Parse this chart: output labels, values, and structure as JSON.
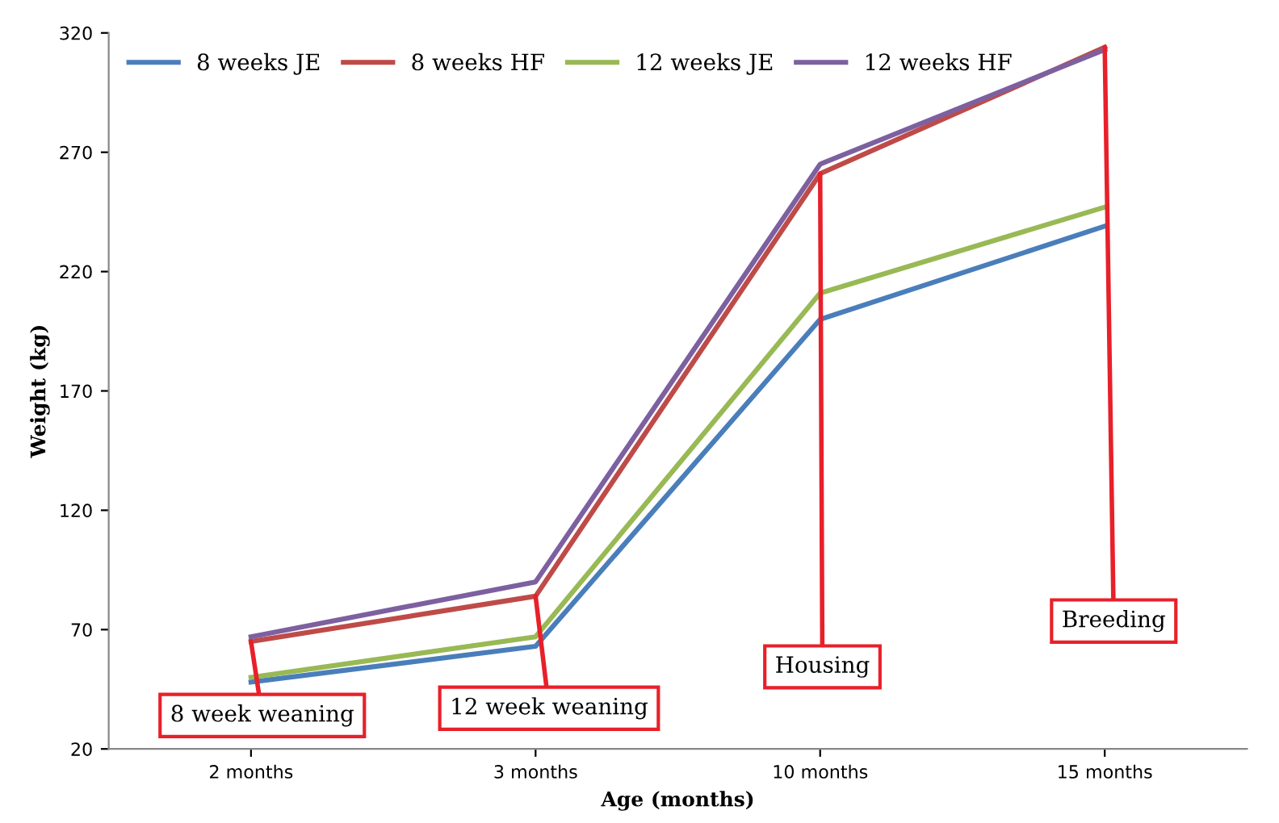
{
  "chart_data": {
    "type": "line",
    "xlabel": "Age (months)",
    "ylabel": "Weight (kg)",
    "categories": [
      "2 months",
      "3 months",
      "10 months",
      "15 months"
    ],
    "series": [
      {
        "name": "8 weeks JE",
        "color": "#4a7ebb",
        "values": [
          48,
          63,
          200,
          239
        ]
      },
      {
        "name": "8 weeks HF",
        "color": "#be4b48",
        "values": [
          65,
          84,
          261,
          314
        ]
      },
      {
        "name": "12 weeks JE",
        "color": "#98b954",
        "values": [
          50,
          67,
          211,
          247
        ]
      },
      {
        "name": "12 weeks HF",
        "color": "#7d60a0",
        "values": [
          67,
          90,
          265,
          313
        ]
      }
    ],
    "ylim": [
      20,
      320
    ],
    "yticks": [
      20,
      70,
      120,
      170,
      220,
      270,
      320
    ],
    "grid": false,
    "legend": "top left",
    "marker": "none",
    "line_style": "solid",
    "annotations": [
      {
        "text": "8 week weaning",
        "x": "2 months",
        "y": 65
      },
      {
        "text": "12 week weaning",
        "x": "3 months",
        "y": 84
      },
      {
        "text": "Housing",
        "x": "10 months",
        "y": 261
      },
      {
        "text": "Breeding",
        "x": "15 months",
        "y": 314
      }
    ]
  }
}
